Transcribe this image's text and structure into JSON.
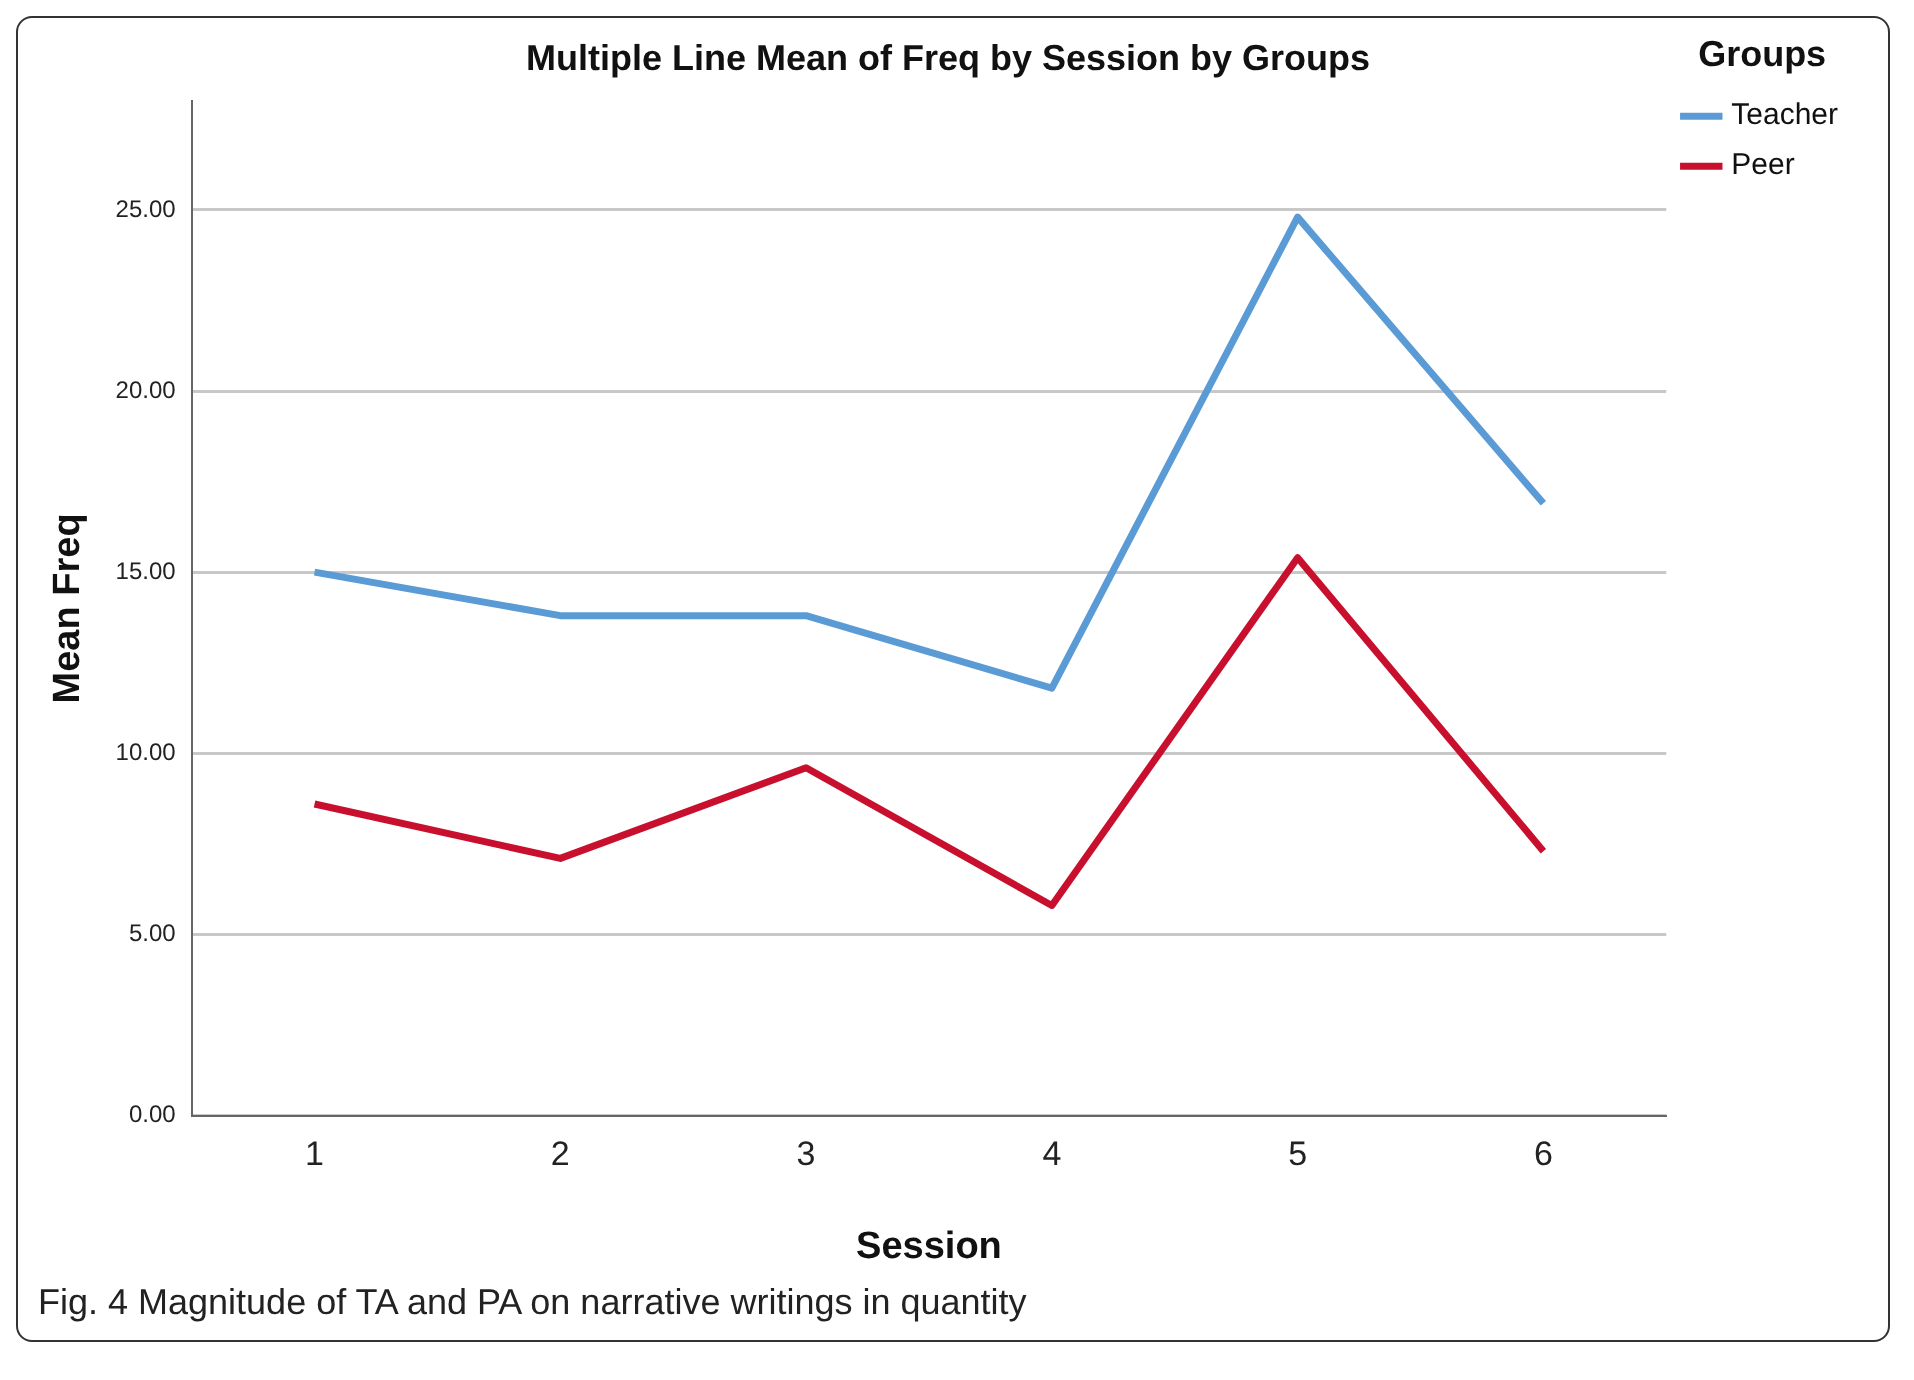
{
  "chart_data": {
    "type": "line",
    "title": "Multiple Line Mean of Freq by Session by Groups",
    "xlabel": "Session",
    "ylabel": "Mean Freq",
    "legend_title": "Groups",
    "categories": [
      "1",
      "2",
      "3",
      "4",
      "5",
      "6"
    ],
    "series": [
      {
        "name": "Teacher",
        "color": "#5b9bd5",
        "values": [
          15.0,
          13.8,
          13.8,
          11.8,
          24.8,
          16.9
        ]
      },
      {
        "name": "Peer",
        "color": "#c8102e",
        "values": [
          8.6,
          7.1,
          9.6,
          5.8,
          15.4,
          7.3
        ]
      }
    ],
    "ylim": [
      0,
      28
    ],
    "yticks": [
      {
        "value": 0,
        "label": "0.00"
      },
      {
        "value": 5,
        "label": "5.00"
      },
      {
        "value": 10,
        "label": "10.00"
      },
      {
        "value": 15,
        "label": "15.00"
      },
      {
        "value": 20,
        "label": "20.00"
      },
      {
        "value": 25,
        "label": "25.00"
      }
    ],
    "grid": "y",
    "legend": "top right",
    "marker": "none",
    "line_style": "solid",
    "annotations": [
      "Fig. 4 Magnitude of TA and PA on narrative writings in quantity"
    ]
  }
}
